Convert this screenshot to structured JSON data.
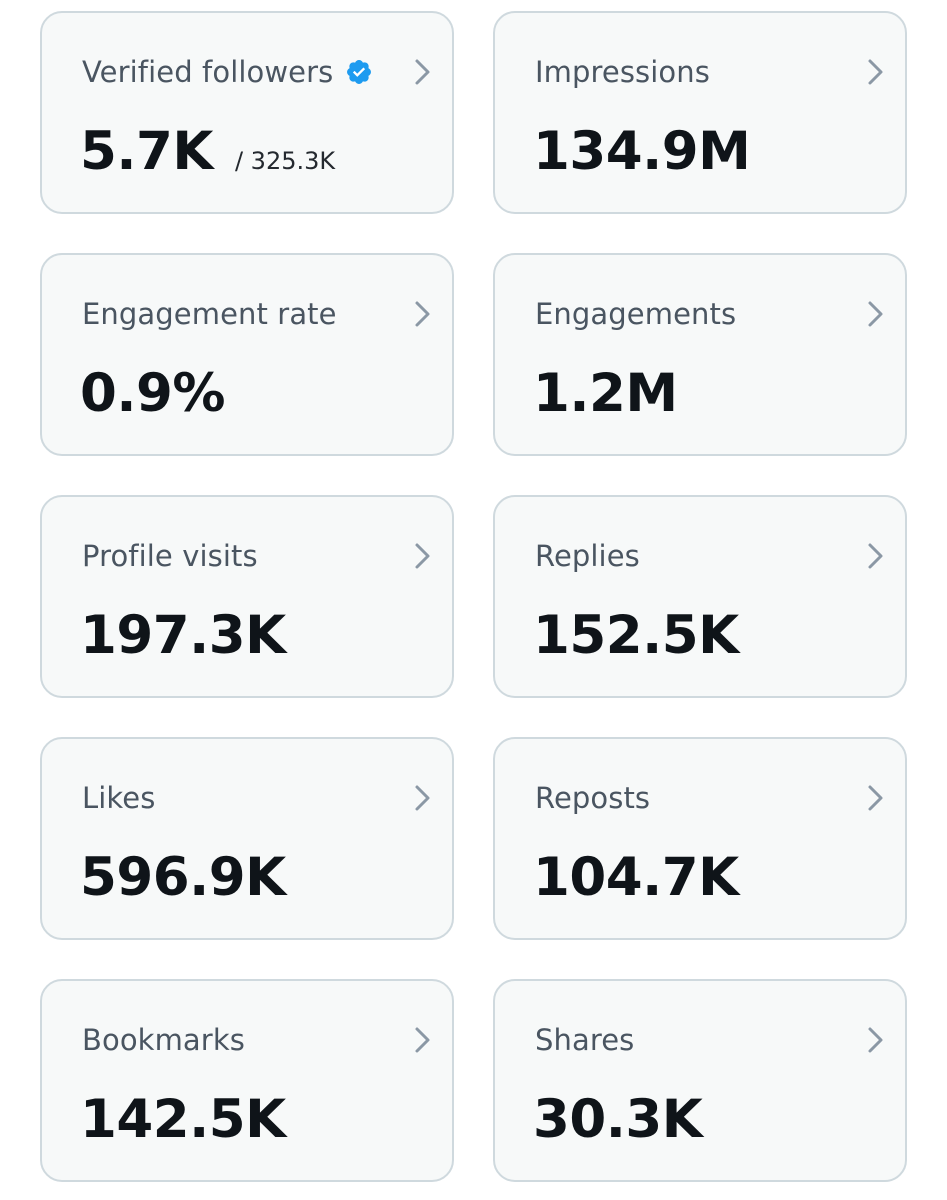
{
  "cards": [
    {
      "label": "Verified followers",
      "value": "5.7K",
      "sub_value": "/ 325.3K",
      "icon": "verified-badge-icon"
    },
    {
      "label": "Impressions",
      "value": "134.9M"
    },
    {
      "label": "Engagement rate",
      "value": "0.9%"
    },
    {
      "label": "Engagements",
      "value": "1.2M"
    },
    {
      "label": "Profile visits",
      "value": "197.3K"
    },
    {
      "label": "Replies",
      "value": "152.5K"
    },
    {
      "label": "Likes",
      "value": "596.9K"
    },
    {
      "label": "Reposts",
      "value": "104.7K"
    },
    {
      "label": "Bookmarks",
      "value": "142.5K"
    },
    {
      "label": "Shares",
      "value": "30.3K"
    }
  ],
  "colors": {
    "card_background": "#f7f9f9",
    "card_border": "#cfd9de",
    "label_text": "#4a5561",
    "value_text": "#0f1419",
    "chevron": "#8b98a5",
    "verified_badge": "#1d9bf0"
  }
}
